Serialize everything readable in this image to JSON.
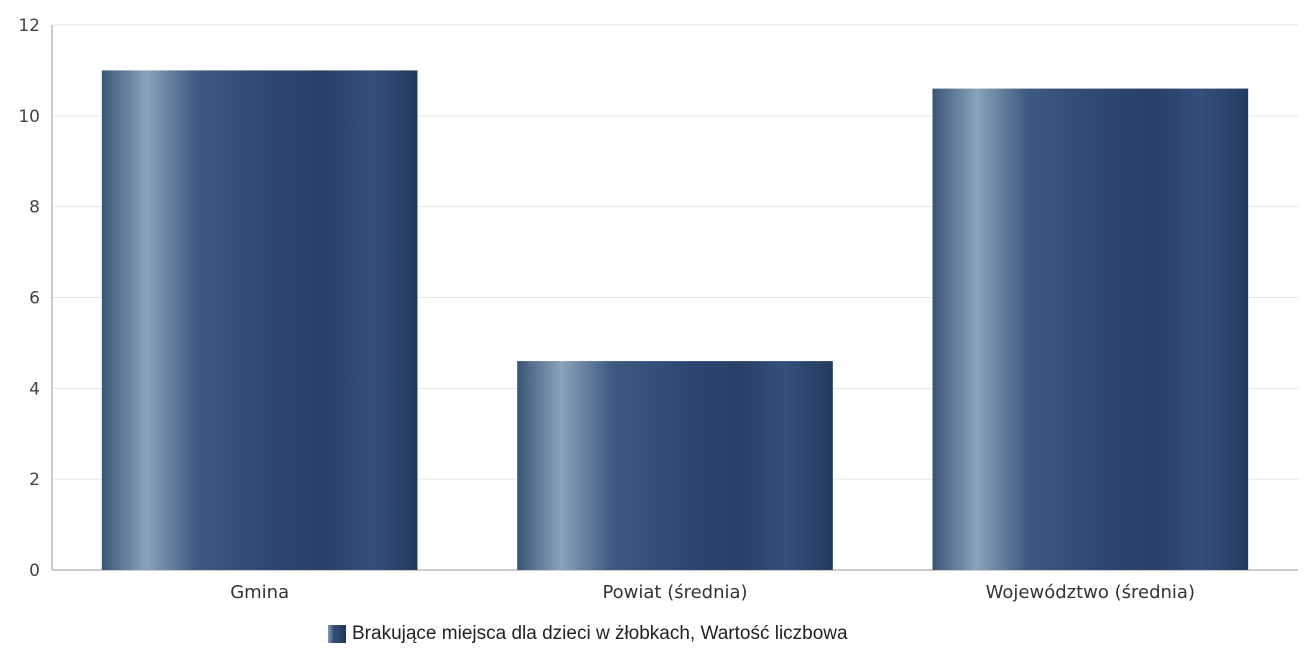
{
  "chart_data": {
    "type": "bar",
    "categories": [
      "Gmina",
      "Powiat (średnia)",
      "Województwo (średnia)"
    ],
    "series": [
      {
        "name": "Brakujące miejsca dla dzieci w żłobkach, Wartość liczbowa",
        "values": [
          11,
          4.6,
          10.6
        ]
      }
    ],
    "yticks": [
      "0",
      "2",
      "4",
      "6",
      "8",
      "10",
      "12"
    ],
    "ylim": [
      0,
      12
    ],
    "grid": true,
    "legend_position": "bottom",
    "colors": {
      "bar_dark": "#2c4670",
      "bar_light": "#8aa3bb",
      "grid": "#e6e6e6",
      "axis": "#9a9a9a"
    }
  }
}
